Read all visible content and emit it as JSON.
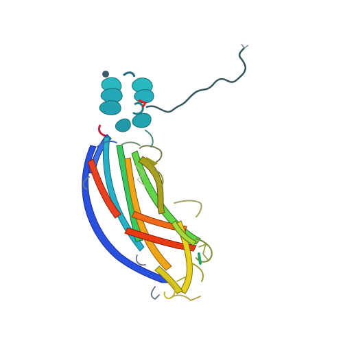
{
  "image": {
    "subject": "protein-ribbon-cartoon",
    "background": "#ffffff",
    "palette": {
      "blue": "#2a4fd8",
      "cyan": "#2ab0c8",
      "teal": "#28a89a",
      "green": "#3cc870",
      "lime": "#a8d830",
      "yellow": "#e8d020",
      "orange": "#f0a020",
      "red": "#e84018",
      "coil": "#3a6a7a"
    }
  }
}
